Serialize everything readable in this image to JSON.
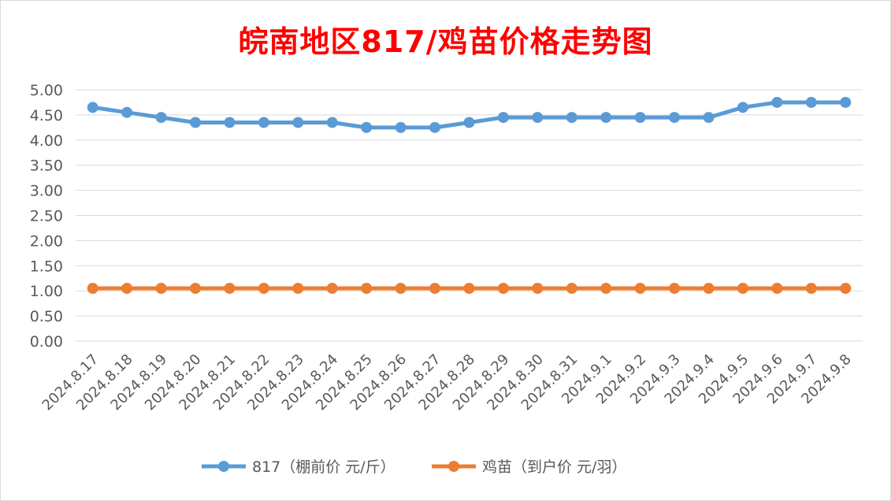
{
  "chart_data": {
    "type": "line",
    "title": "皖南地区817/鸡苗价格走势图",
    "xlabel": "",
    "ylabel": "",
    "ylim": [
      0,
      5
    ],
    "yticks": [
      "0.00",
      "0.50",
      "1.00",
      "1.50",
      "2.00",
      "2.50",
      "3.00",
      "3.50",
      "4.00",
      "4.50",
      "5.00"
    ],
    "grid": true,
    "legend_position": "bottom",
    "categories": [
      "2024.8.17",
      "2024.8.18",
      "2024.8.19",
      "2024.8.20",
      "2024.8.21",
      "2024.8.22",
      "2024.8.23",
      "2024.8.24",
      "2024.8.25",
      "2024.8.26",
      "2024.8.27",
      "2024.8.28",
      "2024.8.29",
      "2024.8.30",
      "2024.8.31",
      "2024.9.1",
      "2024.9.2",
      "2024.9.3",
      "2024.9.4",
      "2024.9.5",
      "2024.9.6",
      "2024.9.7",
      "2024.9.8"
    ],
    "series": [
      {
        "name": "817（棚前价 元/斤）",
        "color": "#5b9bd5",
        "values": [
          4.65,
          4.55,
          4.45,
          4.35,
          4.35,
          4.35,
          4.35,
          4.35,
          4.25,
          4.25,
          4.25,
          4.35,
          4.45,
          4.45,
          4.45,
          4.45,
          4.45,
          4.45,
          4.45,
          4.65,
          4.75,
          4.75,
          4.75
        ]
      },
      {
        "name": "鸡苗（到户价 元/羽）",
        "color": "#ed7d31",
        "values": [
          1.05,
          1.05,
          1.05,
          1.05,
          1.05,
          1.05,
          1.05,
          1.05,
          1.05,
          1.05,
          1.05,
          1.05,
          1.05,
          1.05,
          1.05,
          1.05,
          1.05,
          1.05,
          1.05,
          1.05,
          1.05,
          1.05,
          1.05
        ]
      }
    ]
  }
}
